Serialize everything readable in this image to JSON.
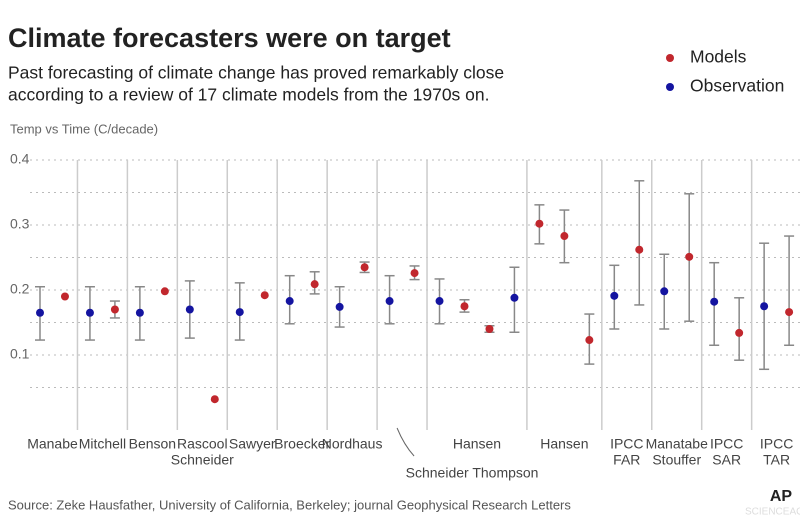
{
  "chart_data": {
    "type": "dot-error",
    "title": "Climate forecasters were on target",
    "subtitle": [
      "Past forecasting of climate change has proved remarkably close",
      "according to a review of 17 climate models from the 1970s on."
    ],
    "y_label": "Temp vs Time (C/decade)",
    "source": "Source: Zeke Hausfather, University of California, Berkeley;  journal Geophysical Research Letters",
    "credit": "AP",
    "watermark": "SCIENCEAQ.COM",
    "ylim": [
      0,
      0.4
    ],
    "yticks": [
      0.1,
      0.2,
      0.3,
      0.4
    ],
    "minor_yticks": [
      0.05,
      0.15,
      0.25,
      0.35
    ],
    "grid": true,
    "groups": [
      {
        "label": [
          "Manabe"
        ],
        "count": 2
      },
      {
        "label": [
          "Mitchell"
        ],
        "count": 2
      },
      {
        "label": [
          "Benson"
        ],
        "count": 2
      },
      {
        "label": [
          "Rascool",
          "Schneider"
        ],
        "count": 2
      },
      {
        "label": [
          "Sawyer"
        ],
        "count": 2
      },
      {
        "label": [
          "Broecker"
        ],
        "count": 2
      },
      {
        "label": [
          "Nordhaus"
        ],
        "count": 2
      },
      {
        "label": [
          "Schneider Thompson"
        ],
        "count": 2
      },
      {
        "label": [
          "Hansen"
        ],
        "count": 4
      },
      {
        "label": [
          "Hansen"
        ],
        "count": 3
      },
      {
        "label": [
          "IPCC",
          "FAR"
        ],
        "count": 2
      },
      {
        "label": [
          "Manatabe",
          "Stouffer"
        ],
        "count": 2
      },
      {
        "label": [
          "IPCC",
          "SAR"
        ],
        "count": 2
      },
      {
        "label": [
          "IPCC",
          "TAR"
        ],
        "count": 2
      }
    ],
    "series": [
      {
        "name": "Models",
        "color": "#c1272d",
        "values": [
          null,
          0.19,
          null,
          0.17,
          null,
          0.198,
          null,
          0.032,
          null,
          0.192,
          null,
          0.209,
          null,
          0.235,
          null,
          0.226,
          null,
          0.175,
          0.14,
          null,
          0.302,
          0.283,
          0.123,
          null,
          0.262,
          null,
          0.251,
          null,
          0.134,
          null,
          0.166
        ],
        "low": [
          null,
          null,
          null,
          0.157,
          null,
          null,
          null,
          null,
          null,
          null,
          null,
          0.194,
          null,
          0.227,
          null,
          0.216,
          null,
          0.166,
          0.135,
          null,
          0.271,
          0.242,
          0.086,
          null,
          0.177,
          null,
          0.152,
          null,
          0.092,
          null,
          0.115
        ],
        "high": [
          null,
          null,
          null,
          0.183,
          null,
          null,
          null,
          null,
          null,
          null,
          null,
          0.228,
          null,
          0.243,
          null,
          0.237,
          null,
          0.185,
          0.145,
          null,
          0.331,
          0.323,
          0.163,
          null,
          0.368,
          null,
          0.348,
          null,
          0.188,
          null,
          0.283
        ]
      },
      {
        "name": "Observation",
        "color": "#1414a0",
        "values": [
          0.165,
          null,
          0.165,
          null,
          0.165,
          null,
          0.17,
          null,
          0.166,
          null,
          0.183,
          null,
          0.174,
          null,
          0.183,
          null,
          0.183,
          null,
          null,
          0.188,
          null,
          null,
          null,
          0.191,
          null,
          0.198,
          null,
          0.182,
          null,
          0.175,
          null
        ],
        "low": [
          0.123,
          null,
          0.123,
          null,
          0.123,
          null,
          0.126,
          null,
          0.123,
          null,
          0.148,
          null,
          0.143,
          null,
          0.148,
          null,
          0.148,
          null,
          null,
          0.135,
          null,
          null,
          null,
          0.14,
          null,
          0.14,
          null,
          0.115,
          null,
          0.078,
          null
        ],
        "high": [
          0.205,
          null,
          0.205,
          null,
          0.205,
          null,
          0.214,
          null,
          0.211,
          null,
          0.222,
          null,
          0.205,
          null,
          0.222,
          null,
          0.217,
          null,
          null,
          0.235,
          null,
          null,
          null,
          0.238,
          null,
          0.255,
          null,
          0.242,
          null,
          0.272,
          null
        ]
      }
    ]
  }
}
